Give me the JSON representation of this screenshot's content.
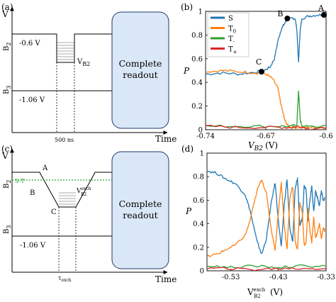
{
  "panel_a": {
    "label": "(a)",
    "y_axis": "V",
    "x_axis": "Time",
    "level_top_label": "B",
    "level_top_sub": "2",
    "level_bottom_label": "B",
    "level_bottom_sub": "3",
    "voltage_top": "-0.6 V",
    "voltage_bottom": "-1.06 V",
    "pulse_label": "V",
    "pulse_sub": "B2",
    "duration_label": "500 ns",
    "box_line1": "Complete",
    "box_line2": "readout"
  },
  "panel_c": {
    "label": "(c)",
    "y_axis": "V",
    "x_axis": "Time",
    "level_top_label": "B",
    "level_top_sub": "2",
    "level_bottom_label": "B",
    "level_bottom_sub": "3",
    "voltage_bottom": "-1.06 V",
    "st_label": "S-T",
    "point_A": "A",
    "point_B": "B",
    "point_C": "C",
    "pulse_label": "V",
    "pulse_sup": "exch",
    "pulse_sub": "B2",
    "duration_label": "τ",
    "duration_sub": "exch",
    "box_line1": "Complete",
    "box_line2": "readout"
  },
  "chart_data": [
    {
      "panel": "(b)",
      "type": "line",
      "xlabel": "V",
      "xlabel_sub": "B2",
      "xlabel_unit": "(V)",
      "ylabel": "P",
      "xlim": [
        -0.74,
        -0.6
      ],
      "ylim": [
        0,
        1
      ],
      "x_tick_labels": [
        "-0.74",
        "-0.67",
        "-0.6"
      ],
      "y_tick_labels": [
        "0",
        "0.2",
        "0.4",
        "0.6",
        "0.8",
        "1"
      ],
      "legend": {
        "placement": "top-left",
        "entries": [
          {
            "name": "S",
            "sub": "",
            "color": "#1f77b4"
          },
          {
            "name": "T",
            "sub": "0",
            "color": "#ff7f0e"
          },
          {
            "name": "T",
            "sub": "-",
            "color": "#2ca02c"
          },
          {
            "name": "T",
            "sub": "+",
            "color": "#d62728"
          }
        ]
      },
      "markers": [
        {
          "label": "A",
          "x": -0.6,
          "y": 0.97
        },
        {
          "label": "B",
          "x": -0.645,
          "y": 0.94
        },
        {
          "label": "C",
          "x": -0.675,
          "y": 0.49
        }
      ],
      "series": [
        {
          "name": "S",
          "color": "#1f77b4",
          "x": [
            -0.74,
            -0.72,
            -0.7,
            -0.68,
            -0.672,
            -0.665,
            -0.66,
            -0.656,
            -0.652,
            -0.648,
            -0.645,
            -0.64,
            -0.636,
            -0.634,
            -0.632,
            -0.63,
            -0.628,
            -0.62,
            -0.61,
            -0.6
          ],
          "y": [
            0.47,
            0.48,
            0.47,
            0.49,
            0.5,
            0.53,
            0.6,
            0.75,
            0.85,
            0.9,
            0.93,
            0.94,
            0.94,
            0.85,
            0.57,
            0.85,
            0.94,
            0.96,
            0.97,
            0.97
          ]
        },
        {
          "name": "T0",
          "color": "#ff7f0e",
          "x": [
            -0.74,
            -0.72,
            -0.7,
            -0.68,
            -0.67,
            -0.662,
            -0.656,
            -0.652,
            -0.648,
            -0.644,
            -0.64,
            -0.63,
            -0.62,
            -0.61,
            -0.6
          ],
          "y": [
            0.49,
            0.5,
            0.49,
            0.48,
            0.47,
            0.43,
            0.35,
            0.2,
            0.08,
            0.03,
            0.02,
            0.02,
            0.02,
            0.02,
            0.02
          ]
        },
        {
          "name": "T-",
          "color": "#2ca02c",
          "x": [
            -0.74,
            -0.7,
            -0.66,
            -0.64,
            -0.634,
            -0.632,
            -0.63,
            -0.628,
            -0.62,
            -0.6
          ],
          "y": [
            0.03,
            0.03,
            0.03,
            0.03,
            0.04,
            0.33,
            0.08,
            0.03,
            0.03,
            0.03
          ]
        },
        {
          "name": "T+",
          "color": "#d62728",
          "x": [
            -0.74,
            -0.7,
            -0.66,
            -0.64,
            -0.632,
            -0.62,
            -0.6
          ],
          "y": [
            0.03,
            0.02,
            0.02,
            0.02,
            0.03,
            0.01,
            0.01
          ]
        }
      ]
    },
    {
      "panel": "(d)",
      "type": "line",
      "xlabel": "V",
      "xlabel_sup": "exch",
      "xlabel_sub": "B2",
      "xlabel_unit": "(V)",
      "ylabel": "P",
      "xlim": [
        -0.58,
        -0.33
      ],
      "ylim": [
        0,
        1
      ],
      "x_tick_labels": [
        "-0.53",
        "-0.43",
        "-0.33"
      ],
      "y_tick_labels": [
        "0",
        "0.2",
        "0.4",
        "0.6",
        "0.8",
        "1"
      ],
      "series": [
        {
          "name": "S",
          "color": "#1f77b4",
          "x": [
            -0.58,
            -0.56,
            -0.54,
            -0.52,
            -0.5,
            -0.49,
            -0.475,
            -0.465,
            -0.455,
            -0.445,
            -0.437,
            -0.43,
            -0.424,
            -0.418,
            -0.412,
            -0.406,
            -0.4,
            -0.395,
            -0.39,
            -0.385,
            -0.38,
            -0.376,
            -0.372,
            -0.368,
            -0.364,
            -0.36,
            -0.356,
            -0.352,
            -0.348,
            -0.344,
            -0.34,
            -0.336,
            -0.332
          ],
          "y": [
            0.85,
            0.83,
            0.78,
            0.74,
            0.65,
            0.52,
            0.25,
            0.14,
            0.28,
            0.58,
            0.75,
            0.42,
            0.2,
            0.55,
            0.78,
            0.35,
            0.25,
            0.7,
            0.78,
            0.38,
            0.45,
            0.72,
            0.7,
            0.42,
            0.6,
            0.72,
            0.5,
            0.68,
            0.62,
            0.55,
            0.68,
            0.6,
            0.62
          ]
        },
        {
          "name": "T0",
          "color": "#ff7f0e",
          "x": [
            -0.58,
            -0.56,
            -0.54,
            -0.52,
            -0.5,
            -0.49,
            -0.475,
            -0.465,
            -0.455,
            -0.445,
            -0.437,
            -0.43,
            -0.424,
            -0.418,
            -0.412,
            -0.406,
            -0.4,
            -0.395,
            -0.39,
            -0.385,
            -0.38,
            -0.376,
            -0.372,
            -0.368,
            -0.364,
            -0.36,
            -0.356,
            -0.352,
            -0.348,
            -0.344,
            -0.34,
            -0.336,
            -0.332
          ],
          "y": [
            0.12,
            0.14,
            0.18,
            0.22,
            0.3,
            0.42,
            0.68,
            0.78,
            0.65,
            0.35,
            0.18,
            0.5,
            0.75,
            0.4,
            0.18,
            0.62,
            0.72,
            0.25,
            0.18,
            0.58,
            0.5,
            0.22,
            0.24,
            0.52,
            0.35,
            0.24,
            0.45,
            0.28,
            0.33,
            0.4,
            0.28,
            0.36,
            0.34
          ]
        },
        {
          "name": "T-",
          "color": "#2ca02c",
          "x": [
            -0.58,
            -0.53,
            -0.48,
            -0.43,
            -0.38,
            -0.33
          ],
          "y": [
            0.04,
            0.03,
            0.04,
            0.03,
            0.04,
            0.04
          ]
        },
        {
          "name": "T+",
          "color": "#d62728",
          "x": [
            -0.58,
            -0.53,
            -0.48,
            -0.43,
            -0.38,
            -0.33
          ],
          "y": [
            0.02,
            0.02,
            0.01,
            0.02,
            0.02,
            0.02
          ]
        }
      ]
    }
  ]
}
